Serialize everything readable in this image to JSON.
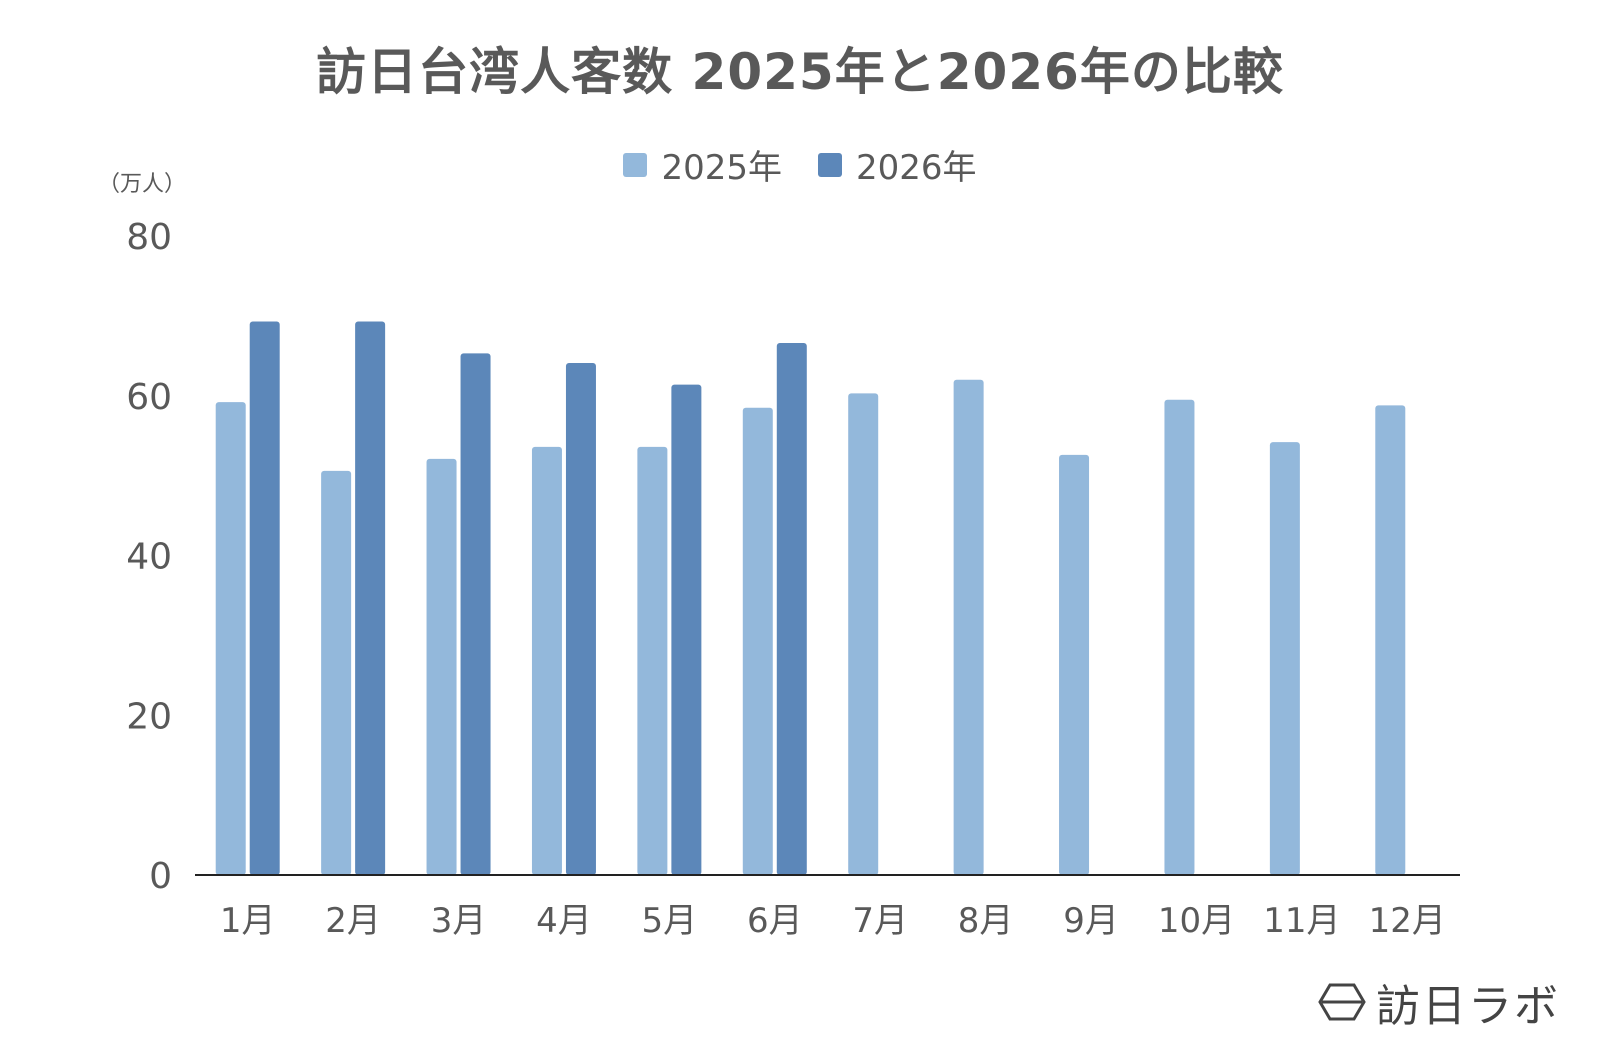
{
  "chart_data": {
    "type": "bar",
    "title": "訪日台湾人客数 2025年と2026年の比較",
    "ylabel": "（万人）",
    "xlabel": "",
    "ylim": [
      0,
      80
    ],
    "yticks": [
      0,
      20,
      40,
      60,
      80
    ],
    "grid": false,
    "legend_position": "top-center",
    "categories": [
      "1月",
      "2月",
      "3月",
      "4月",
      "5月",
      "6月",
      "7月",
      "8月",
      "9月",
      "10月",
      "11月",
      "12月"
    ],
    "series": [
      {
        "name": "2025年",
        "color": "#93B8DB",
        "values": [
          59.2,
          50.6,
          52.1,
          53.6,
          53.6,
          58.5,
          60.3,
          62.0,
          52.6,
          59.5,
          54.2,
          58.8
        ]
      },
      {
        "name": "2026年",
        "color": "#5C87B9",
        "values": [
          69.3,
          69.3,
          65.3,
          64.1,
          61.4,
          66.6,
          null,
          null,
          null,
          null,
          null,
          null
        ]
      }
    ]
  },
  "logo": {
    "text": "訪日ラボ",
    "icon": "hexagon-logo-icon"
  }
}
